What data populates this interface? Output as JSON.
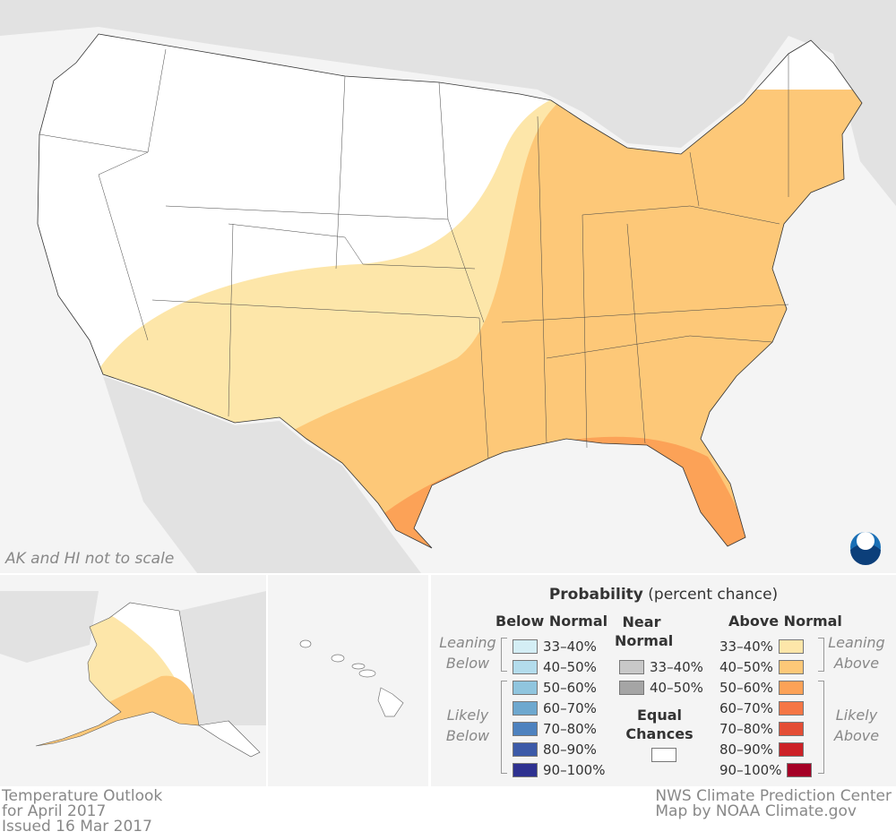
{
  "map": {
    "scale_note": "AK and HI not to scale",
    "logo": "NOAA",
    "colors": {
      "background_land": "#e2e2e2",
      "water": "#f4f4f4",
      "equal_chances": "#ffffff",
      "above_33_40": "#fde6a9",
      "above_40_50": "#fdc878",
      "above_50_60": "#fca257"
    }
  },
  "legend": {
    "title_bold": "Probability",
    "title_rest": "(percent chance)",
    "below": {
      "heading": "Below Normal",
      "leaning_label": [
        "Leaning",
        "Below"
      ],
      "likely_label": [
        "Likely",
        "Below"
      ],
      "items": [
        {
          "label": "33–40%",
          "color": "#d4eef5"
        },
        {
          "label": "40–50%",
          "color": "#b3dcec"
        },
        {
          "label": "50–60%",
          "color": "#90c5de"
        },
        {
          "label": "60–70%",
          "color": "#6ea8cf"
        },
        {
          "label": "70–80%",
          "color": "#4e82bf"
        },
        {
          "label": "80–90%",
          "color": "#3c5aa8"
        },
        {
          "label": "90–100%",
          "color": "#2e3190"
        }
      ]
    },
    "near": {
      "heading": [
        "Near",
        "Normal"
      ],
      "items": [
        {
          "label": "33–40%",
          "color": "#c8c8c8"
        },
        {
          "label": "40–50%",
          "color": "#a5a5a5"
        }
      ],
      "equal_heading": [
        "Equal",
        "Chances"
      ],
      "equal_color": "#ffffff"
    },
    "above": {
      "heading": "Above Normal",
      "leaning_label": [
        "Leaning",
        "Above"
      ],
      "likely_label": [
        "Likely",
        "Above"
      ],
      "items": [
        {
          "label": "33–40%",
          "color": "#fde6a9"
        },
        {
          "label": "40–50%",
          "color": "#fdc878"
        },
        {
          "label": "50–60%",
          "color": "#fca257"
        },
        {
          "label": "60–70%",
          "color": "#f57645"
        },
        {
          "label": "70–80%",
          "color": "#e44d35"
        },
        {
          "label": "80–90%",
          "color": "#cc2127"
        },
        {
          "label": "90–100%",
          "color": "#a50026"
        }
      ]
    }
  },
  "footer": {
    "left": [
      "Temperature Outlook",
      "for April 2017",
      "Issued 16 Mar 2017"
    ],
    "right": [
      "NWS Climate Prediction Center",
      "Map by NOAA Climate.gov"
    ]
  }
}
